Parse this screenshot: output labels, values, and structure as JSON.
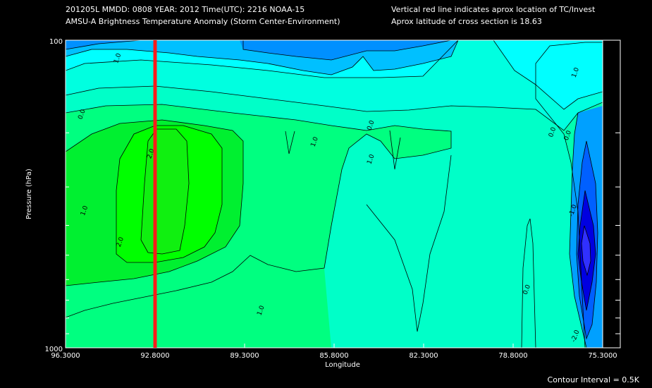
{
  "header": {
    "line1_left": "201205L  MMDD: 0808 YEAR: 2012 Time(UTC): 2216 NOAA-15",
    "line2_left": "AMSU-A Brightness Temperature Anomaly (Storm Center-Environment)",
    "line1_right": "Vertical red line indicates aprox location of TC/Invest",
    "line2_right": "Aprox latitude of cross section is 18.63"
  },
  "footer": {
    "contour_interval": "Contour Interval = 0.5K"
  },
  "colors": {
    "background": "#000000",
    "tc_line": "#ff1a1a",
    "contour": "#000000"
  },
  "chart_data": {
    "type": "heatmap",
    "title": "AMSU-A Brightness Temperature Anomaly (Storm Center-Environment)",
    "xlabel": "Longitude",
    "ylabel": "Pressure (hPa)",
    "x_ticks": [
      "96.3000",
      "92.8000",
      "89.3000",
      "85.8000",
      "82.3000",
      "78.8000",
      "75.3000"
    ],
    "x_tick_values": [
      96.3,
      92.8,
      89.3,
      85.8,
      82.3,
      78.8,
      75.3
    ],
    "xlim": [
      96.3,
      75.3
    ],
    "y_ticks": [
      "100",
      "1000"
    ],
    "ylim": [
      1000,
      100
    ],
    "y_scale": "log",
    "tc_longitude": 92.8,
    "contour_labels": [
      {
        "text": "1.0",
        "lon": 94.2,
        "p": 115
      },
      {
        "text": "0.0",
        "lon": 95.6,
        "p": 175
      },
      {
        "text": "0.0",
        "lon": 84.3,
        "p": 190
      },
      {
        "text": "1.0",
        "lon": 86.5,
        "p": 215
      },
      {
        "text": "2.0",
        "lon": 92.9,
        "p": 235
      },
      {
        "text": "1.0",
        "lon": 95.5,
        "p": 360
      },
      {
        "text": "2.0",
        "lon": 94.1,
        "p": 455
      },
      {
        "text": "1.0",
        "lon": 84.3,
        "p": 245
      },
      {
        "text": "1.0",
        "lon": 88.6,
        "p": 760
      },
      {
        "text": "0.0",
        "lon": 78.2,
        "p": 650
      },
      {
        "text": "0.0",
        "lon": 77.2,
        "p": 200
      },
      {
        "text": "-1.0",
        "lon": 76.4,
        "p": 360
      },
      {
        "text": "-2.0",
        "lon": 76.3,
        "p": 920
      },
      {
        "text": "1.0",
        "lon": 76.3,
        "p": 128
      },
      {
        "text": "0.0",
        "lon": 76.6,
        "p": 205
      }
    ]
  }
}
